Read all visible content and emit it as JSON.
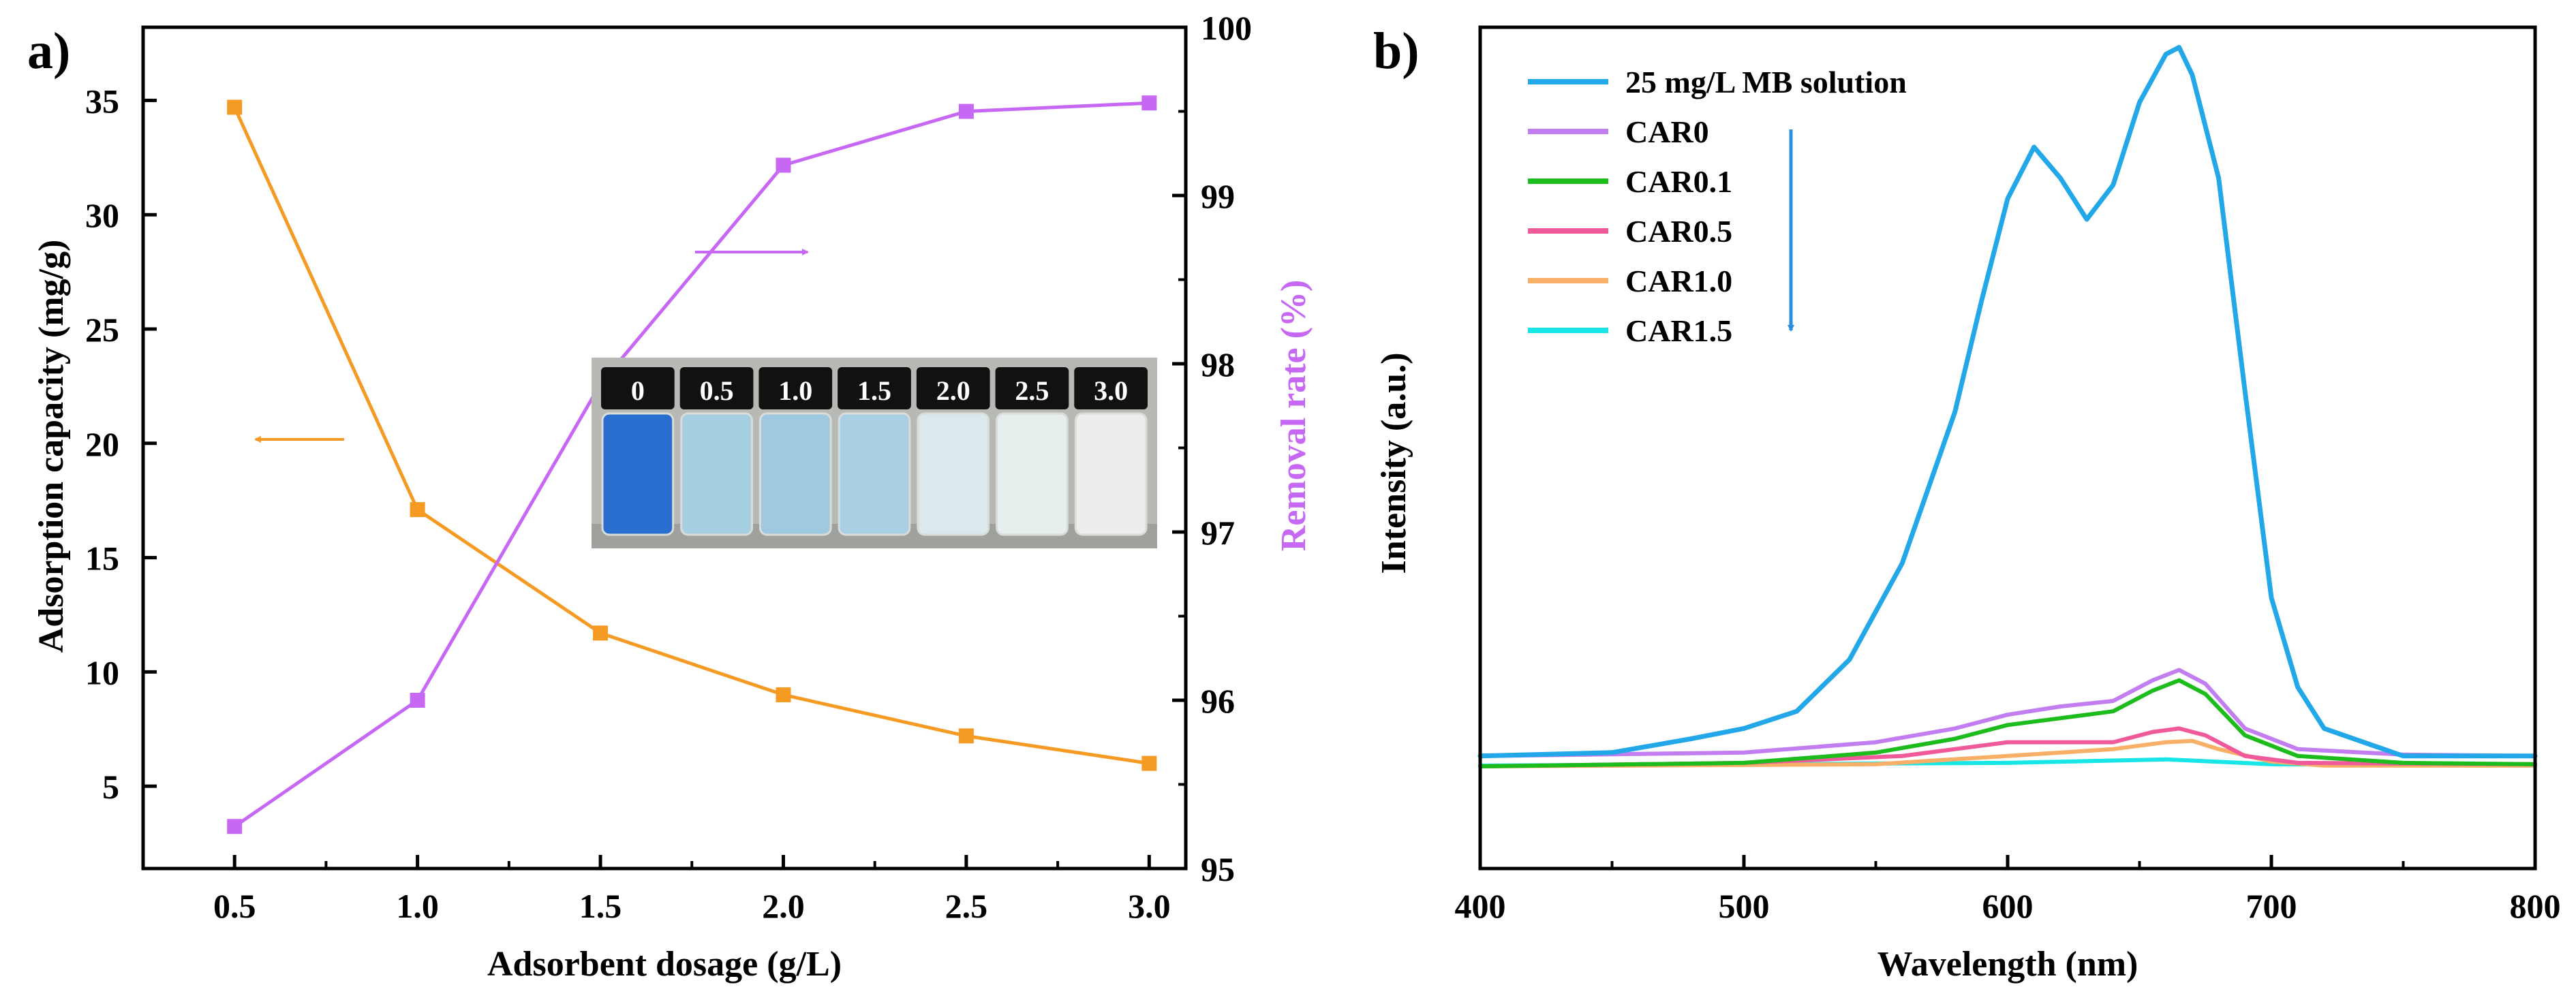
{
  "chart_data": [
    {
      "panel_label": "a)",
      "type": "line",
      "x": [
        0.5,
        1.0,
        1.5,
        2.0,
        2.5,
        3.0
      ],
      "xlabel": "Adsorbent dosage (g/L)",
      "xlim": [
        0.25,
        3.1
      ],
      "xticks": [
        "0.5",
        "1.0",
        "1.5",
        "2.0",
        "2.5",
        "3.0"
      ],
      "ylabel": "Adsorption capacity (mg/g)",
      "ylim": [
        1.4,
        38.2
      ],
      "yticks": [
        "5",
        "10",
        "15",
        "20",
        "25",
        "30",
        "35"
      ],
      "y2label": "Removal rate (%)",
      "y2lim": [
        95,
        100
      ],
      "y2ticks": [
        "95",
        "96",
        "97",
        "98",
        "99",
        "100"
      ],
      "series": [
        {
          "axis": "left",
          "color": "#f59a23",
          "values": [
            34.7,
            17.1,
            11.7,
            9.0,
            7.2,
            6.0
          ]
        },
        {
          "axis": "right",
          "color": "#c768f5",
          "values": [
            95.25,
            96.0,
            97.88,
            99.18,
            99.5,
            99.55
          ]
        }
      ],
      "inset_photo": {
        "vial_labels": [
          "0",
          "0.5",
          "1.0",
          "1.5",
          "2.0",
          "2.5",
          "3.0"
        ],
        "vial_colors": [
          "#2a6fd0",
          "#a6cfe2",
          "#9fc9e0",
          "#a9cfe3",
          "#dbe9ec",
          "#e7eeee",
          "#eceeee"
        ]
      }
    },
    {
      "panel_label": "b)",
      "type": "line",
      "xlabel": "Wavelength (nm)",
      "xlim": [
        400,
        800
      ],
      "xticks": [
        "400",
        "500",
        "600",
        "700",
        "800"
      ],
      "ylabel": "Intensity (a.u.)",
      "ylim": [
        0,
        1.12
      ],
      "series": [
        {
          "name": "25 mg/L MB solution",
          "color": "#22a7e8",
          "points": [
            [
              400,
              0.02
            ],
            [
              450,
              0.025
            ],
            [
              480,
              0.045
            ],
            [
              500,
              0.06
            ],
            [
              520,
              0.085
            ],
            [
              540,
              0.16
            ],
            [
              560,
              0.3
            ],
            [
              580,
              0.52
            ],
            [
              590,
              0.68
            ],
            [
              600,
              0.83
            ],
            [
              610,
              0.905
            ],
            [
              620,
              0.86
            ],
            [
              630,
              0.8
            ],
            [
              640,
              0.85
            ],
            [
              650,
              0.97
            ],
            [
              660,
              1.04
            ],
            [
              665,
              1.05
            ],
            [
              670,
              1.01
            ],
            [
              680,
              0.86
            ],
            [
              690,
              0.55
            ],
            [
              700,
              0.25
            ],
            [
              710,
              0.12
            ],
            [
              720,
              0.06
            ],
            [
              750,
              0.02
            ],
            [
              800,
              0.02
            ]
          ]
        },
        {
          "name": "CAR0",
          "color": "#c27ef0",
          "points": [
            [
              400,
              0.02
            ],
            [
              500,
              0.025
            ],
            [
              550,
              0.04
            ],
            [
              580,
              0.06
            ],
            [
              600,
              0.08
            ],
            [
              620,
              0.092
            ],
            [
              640,
              0.1
            ],
            [
              655,
              0.13
            ],
            [
              665,
              0.145
            ],
            [
              675,
              0.125
            ],
            [
              690,
              0.06
            ],
            [
              710,
              0.03
            ],
            [
              750,
              0.022
            ],
            [
              800,
              0.02
            ]
          ]
        },
        {
          "name": "CAR0.1",
          "color": "#1dbc1d",
          "points": [
            [
              400,
              0.005
            ],
            [
              500,
              0.01
            ],
            [
              550,
              0.025
            ],
            [
              580,
              0.045
            ],
            [
              600,
              0.065
            ],
            [
              620,
              0.075
            ],
            [
              640,
              0.085
            ],
            [
              655,
              0.115
            ],
            [
              665,
              0.13
            ],
            [
              675,
              0.11
            ],
            [
              690,
              0.05
            ],
            [
              710,
              0.02
            ],
            [
              750,
              0.01
            ],
            [
              800,
              0.008
            ]
          ]
        },
        {
          "name": "CAR0.5",
          "color": "#f05a9a",
          "points": [
            [
              400,
              0.005
            ],
            [
              500,
              0.01
            ],
            [
              560,
              0.02
            ],
            [
              600,
              0.04
            ],
            [
              620,
              0.04
            ],
            [
              640,
              0.04
            ],
            [
              655,
              0.055
            ],
            [
              665,
              0.06
            ],
            [
              675,
              0.05
            ],
            [
              690,
              0.02
            ],
            [
              710,
              0.01
            ],
            [
              800,
              0.008
            ]
          ]
        },
        {
          "name": "CAR1.0",
          "color": "#f8b068",
          "points": [
            [
              400,
              0.005
            ],
            [
              550,
              0.008
            ],
            [
              600,
              0.02
            ],
            [
              640,
              0.03
            ],
            [
              660,
              0.04
            ],
            [
              670,
              0.042
            ],
            [
              680,
              0.03
            ],
            [
              700,
              0.012
            ],
            [
              720,
              0.006
            ],
            [
              800,
              0.006
            ]
          ]
        },
        {
          "name": "CAR1.5",
          "color": "#18e6e6",
          "points": [
            [
              400,
              0.006
            ],
            [
              600,
              0.01
            ],
            [
              660,
              0.015
            ],
            [
              700,
              0.008
            ],
            [
              800,
              0.006
            ]
          ]
        }
      ]
    }
  ]
}
